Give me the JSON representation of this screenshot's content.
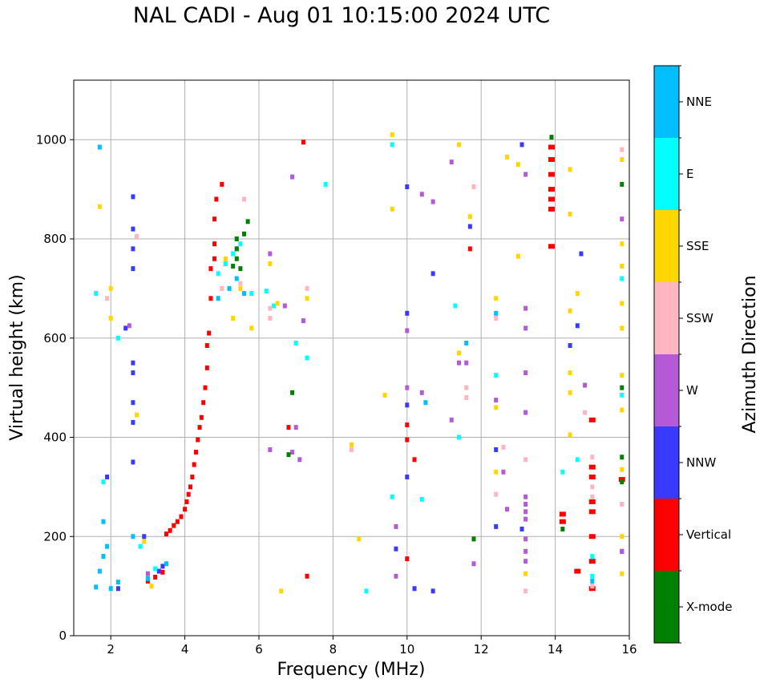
{
  "chart_data": {
    "type": "scatter",
    "title": "NAL CADI - Aug 01 10:15:00 2024 UTC",
    "xlabel": "Frequency (MHz)",
    "ylabel": "Virtual height (km)",
    "xlim": [
      1,
      16
    ],
    "ylim": [
      0,
      1120
    ],
    "xticks": [
      2,
      4,
      6,
      8,
      10,
      12,
      14,
      16
    ],
    "yticks": [
      0,
      200,
      400,
      600,
      800,
      1000
    ],
    "grid": true,
    "colorbar": {
      "label": "Azimuth Direction",
      "categories": [
        {
          "name": "X-mode",
          "color": "#008000"
        },
        {
          "name": "Vertical",
          "color": "#ff0000"
        },
        {
          "name": "NNW",
          "color": "#3a3aff"
        },
        {
          "name": "W",
          "color": "#b55ad6"
        },
        {
          "name": "SSW",
          "color": "#ffb6c1"
        },
        {
          "name": "SSE",
          "color": "#ffd700"
        },
        {
          "name": "E",
          "color": "#00ffff"
        },
        {
          "name": "NNE",
          "color": "#00bfff"
        }
      ]
    },
    "series": [
      {
        "name": "Vertical",
        "points": [
          [
            3.0,
            110
          ],
          [
            3.2,
            118
          ],
          [
            3.4,
            128
          ],
          [
            3.5,
            205
          ],
          [
            3.6,
            212
          ],
          [
            3.7,
            222
          ],
          [
            3.8,
            230
          ],
          [
            3.9,
            240
          ],
          [
            4.0,
            255
          ],
          [
            4.05,
            270
          ],
          [
            4.1,
            285
          ],
          [
            4.15,
            300
          ],
          [
            4.2,
            320
          ],
          [
            4.25,
            345
          ],
          [
            4.3,
            370
          ],
          [
            4.35,
            395
          ],
          [
            4.4,
            420
          ],
          [
            4.45,
            440
          ],
          [
            4.5,
            470
          ],
          [
            4.55,
            500
          ],
          [
            4.6,
            540
          ],
          [
            4.6,
            585
          ],
          [
            4.65,
            610
          ],
          [
            4.7,
            680
          ],
          [
            4.7,
            740
          ],
          [
            4.8,
            760
          ],
          [
            4.8,
            790
          ],
          [
            4.8,
            840
          ],
          [
            4.85,
            880
          ],
          [
            5.0,
            910
          ],
          [
            6.8,
            420
          ],
          [
            7.2,
            995
          ],
          [
            7.3,
            120
          ],
          [
            13.9,
            860
          ],
          [
            13.9,
            880
          ],
          [
            13.9,
            900
          ],
          [
            13.9,
            930
          ],
          [
            13.9,
            960
          ],
          [
            13.9,
            985
          ],
          [
            13.9,
            785
          ],
          [
            14.2,
            230
          ],
          [
            14.2,
            245
          ],
          [
            15.0,
            340
          ],
          [
            15.0,
            320
          ],
          [
            15.0,
            270
          ],
          [
            15.0,
            250
          ],
          [
            15.0,
            200
          ],
          [
            15.0,
            150
          ],
          [
            15.0,
            95
          ],
          [
            15.0,
            435
          ],
          [
            14.6,
            130
          ],
          [
            10.0,
            155
          ],
          [
            10.2,
            355
          ],
          [
            11.7,
            780
          ],
          [
            15.8,
            315
          ],
          [
            10.0,
            425
          ],
          [
            10.0,
            395
          ]
        ]
      },
      {
        "name": "NNW",
        "points": [
          [
            2.6,
            885
          ],
          [
            2.6,
            820
          ],
          [
            2.6,
            780
          ],
          [
            2.6,
            740
          ],
          [
            2.6,
            550
          ],
          [
            2.6,
            530
          ],
          [
            2.6,
            470
          ],
          [
            2.6,
            430
          ],
          [
            2.6,
            350
          ],
          [
            2.4,
            620
          ],
          [
            1.9,
            320
          ],
          [
            2.9,
            200
          ],
          [
            2.2,
            95
          ],
          [
            3.4,
            140
          ],
          [
            3.3,
            130
          ],
          [
            10.0,
            905
          ],
          [
            10.0,
            650
          ],
          [
            9.7,
            175
          ],
          [
            10.0,
            320
          ],
          [
            10.7,
            90
          ],
          [
            10.7,
            730
          ],
          [
            13.1,
            990
          ],
          [
            13.1,
            215
          ],
          [
            14.4,
            585
          ],
          [
            14.6,
            625
          ],
          [
            14.7,
            770
          ],
          [
            12.4,
            375
          ],
          [
            12.4,
            220
          ],
          [
            11.7,
            825
          ],
          [
            10.0,
            465
          ],
          [
            10.2,
            95
          ],
          [
            15.8,
            170
          ]
        ]
      },
      {
        "name": "NNE",
        "points": [
          [
            1.6,
            98
          ],
          [
            1.7,
            130
          ],
          [
            1.8,
            160
          ],
          [
            1.9,
            180
          ],
          [
            1.8,
            230
          ],
          [
            2.0,
            95
          ],
          [
            2.2,
            108
          ],
          [
            2.6,
            200
          ],
          [
            3.5,
            145
          ],
          [
            3.0,
            115
          ],
          [
            5.4,
            780
          ],
          [
            5.4,
            720
          ],
          [
            5.2,
            700
          ],
          [
            5.6,
            690
          ],
          [
            4.9,
            680
          ],
          [
            12.4,
            650
          ],
          [
            11.6,
            590
          ],
          [
            10.5,
            470
          ],
          [
            15.0,
            110
          ],
          [
            1.7,
            985
          ]
        ]
      },
      {
        "name": "E",
        "points": [
          [
            1.6,
            690
          ],
          [
            2.2,
            600
          ],
          [
            1.8,
            310
          ],
          [
            2.8,
            180
          ],
          [
            3.2,
            135
          ],
          [
            4.9,
            730
          ],
          [
            5.1,
            750
          ],
          [
            5.3,
            770
          ],
          [
            5.5,
            790
          ],
          [
            5.8,
            690
          ],
          [
            6.2,
            695
          ],
          [
            6.4,
            665
          ],
          [
            7.0,
            590
          ],
          [
            7.3,
            560
          ],
          [
            7.8,
            910
          ],
          [
            8.9,
            90
          ],
          [
            9.6,
            990
          ],
          [
            9.6,
            280
          ],
          [
            10.4,
            275
          ],
          [
            11.4,
            400
          ],
          [
            11.3,
            665
          ],
          [
            12.4,
            525
          ],
          [
            14.2,
            330
          ],
          [
            14.6,
            355
          ],
          [
            15.0,
            160
          ],
          [
            15.0,
            120
          ],
          [
            15.8,
            720
          ],
          [
            15.8,
            265
          ],
          [
            15.8,
            485
          ]
        ]
      },
      {
        "name": "SSE",
        "points": [
          [
            1.7,
            865
          ],
          [
            2.0,
            700
          ],
          [
            2.0,
            640
          ],
          [
            2.7,
            445
          ],
          [
            2.9,
            190
          ],
          [
            3.1,
            100
          ],
          [
            5.1,
            760
          ],
          [
            5.3,
            640
          ],
          [
            5.5,
            700
          ],
          [
            5.8,
            620
          ],
          [
            6.3,
            750
          ],
          [
            6.5,
            670
          ],
          [
            6.6,
            90
          ],
          [
            7.3,
            680
          ],
          [
            8.5,
            385
          ],
          [
            8.7,
            195
          ],
          [
            9.4,
            485
          ],
          [
            9.6,
            1010
          ],
          [
            9.6,
            860
          ],
          [
            11.4,
            570
          ],
          [
            11.4,
            990
          ],
          [
            11.7,
            845
          ],
          [
            12.4,
            680
          ],
          [
            12.4,
            330
          ],
          [
            12.4,
            460
          ],
          [
            12.7,
            965
          ],
          [
            13.0,
            765
          ],
          [
            13.0,
            950
          ],
          [
            13.2,
            125
          ],
          [
            14.4,
            850
          ],
          [
            14.4,
            940
          ],
          [
            14.4,
            655
          ],
          [
            14.4,
            530
          ],
          [
            14.4,
            490
          ],
          [
            14.4,
            405
          ],
          [
            14.6,
            690
          ],
          [
            15.8,
            960
          ],
          [
            15.8,
            790
          ],
          [
            15.8,
            745
          ],
          [
            15.8,
            670
          ],
          [
            15.8,
            620
          ],
          [
            15.8,
            525
          ],
          [
            15.8,
            455
          ],
          [
            15.8,
            335
          ],
          [
            15.8,
            200
          ],
          [
            15.8,
            125
          ]
        ]
      },
      {
        "name": "SSW",
        "points": [
          [
            1.9,
            680
          ],
          [
            2.7,
            805
          ],
          [
            5.0,
            700
          ],
          [
            5.5,
            710
          ],
          [
            5.6,
            880
          ],
          [
            6.3,
            640
          ],
          [
            6.3,
            660
          ],
          [
            7.3,
            700
          ],
          [
            8.5,
            375
          ],
          [
            11.6,
            500
          ],
          [
            11.6,
            480
          ],
          [
            11.8,
            905
          ],
          [
            12.4,
            640
          ],
          [
            12.4,
            285
          ],
          [
            12.6,
            380
          ],
          [
            13.2,
            355
          ],
          [
            13.2,
            90
          ],
          [
            14.8,
            450
          ],
          [
            15.0,
            360
          ],
          [
            15.0,
            300
          ],
          [
            15.0,
            280
          ],
          [
            15.0,
            100
          ],
          [
            15.8,
            980
          ],
          [
            15.8,
            265
          ]
        ]
      },
      {
        "name": "W",
        "points": [
          [
            2.5,
            625
          ],
          [
            3.0,
            125
          ],
          [
            6.3,
            770
          ],
          [
            6.3,
            375
          ],
          [
            6.7,
            665
          ],
          [
            6.9,
            925
          ],
          [
            6.9,
            370
          ],
          [
            7.0,
            420
          ],
          [
            7.1,
            355
          ],
          [
            7.2,
            635
          ],
          [
            9.7,
            220
          ],
          [
            9.7,
            120
          ],
          [
            10.0,
            615
          ],
          [
            10.0,
            500
          ],
          [
            10.4,
            490
          ],
          [
            10.4,
            890
          ],
          [
            10.7,
            875
          ],
          [
            11.2,
            955
          ],
          [
            11.2,
            435
          ],
          [
            11.4,
            550
          ],
          [
            11.6,
            550
          ],
          [
            11.8,
            145
          ],
          [
            12.4,
            475
          ],
          [
            12.7,
            255
          ],
          [
            12.6,
            330
          ],
          [
            13.2,
            620
          ],
          [
            13.2,
            660
          ],
          [
            13.2,
            530
          ],
          [
            13.2,
            450
          ],
          [
            13.2,
            280
          ],
          [
            13.2,
            265
          ],
          [
            13.2,
            250
          ],
          [
            13.2,
            235
          ],
          [
            13.2,
            195
          ],
          [
            13.2,
            170
          ],
          [
            13.2,
            150
          ],
          [
            13.2,
            930
          ],
          [
            14.8,
            505
          ],
          [
            15.8,
            840
          ],
          [
            15.8,
            170
          ]
        ]
      },
      {
        "name": "X-mode",
        "points": [
          [
            5.3,
            745
          ],
          [
            5.4,
            760
          ],
          [
            5.4,
            780
          ],
          [
            5.4,
            800
          ],
          [
            5.5,
            740
          ],
          [
            5.6,
            810
          ],
          [
            5.7,
            835
          ],
          [
            6.8,
            365
          ],
          [
            6.9,
            490
          ],
          [
            11.8,
            195
          ],
          [
            13.9,
            1005
          ],
          [
            14.2,
            215
          ],
          [
            15.8,
            910
          ],
          [
            15.8,
            500
          ],
          [
            15.8,
            360
          ],
          [
            15.8,
            310
          ]
        ]
      }
    ]
  }
}
